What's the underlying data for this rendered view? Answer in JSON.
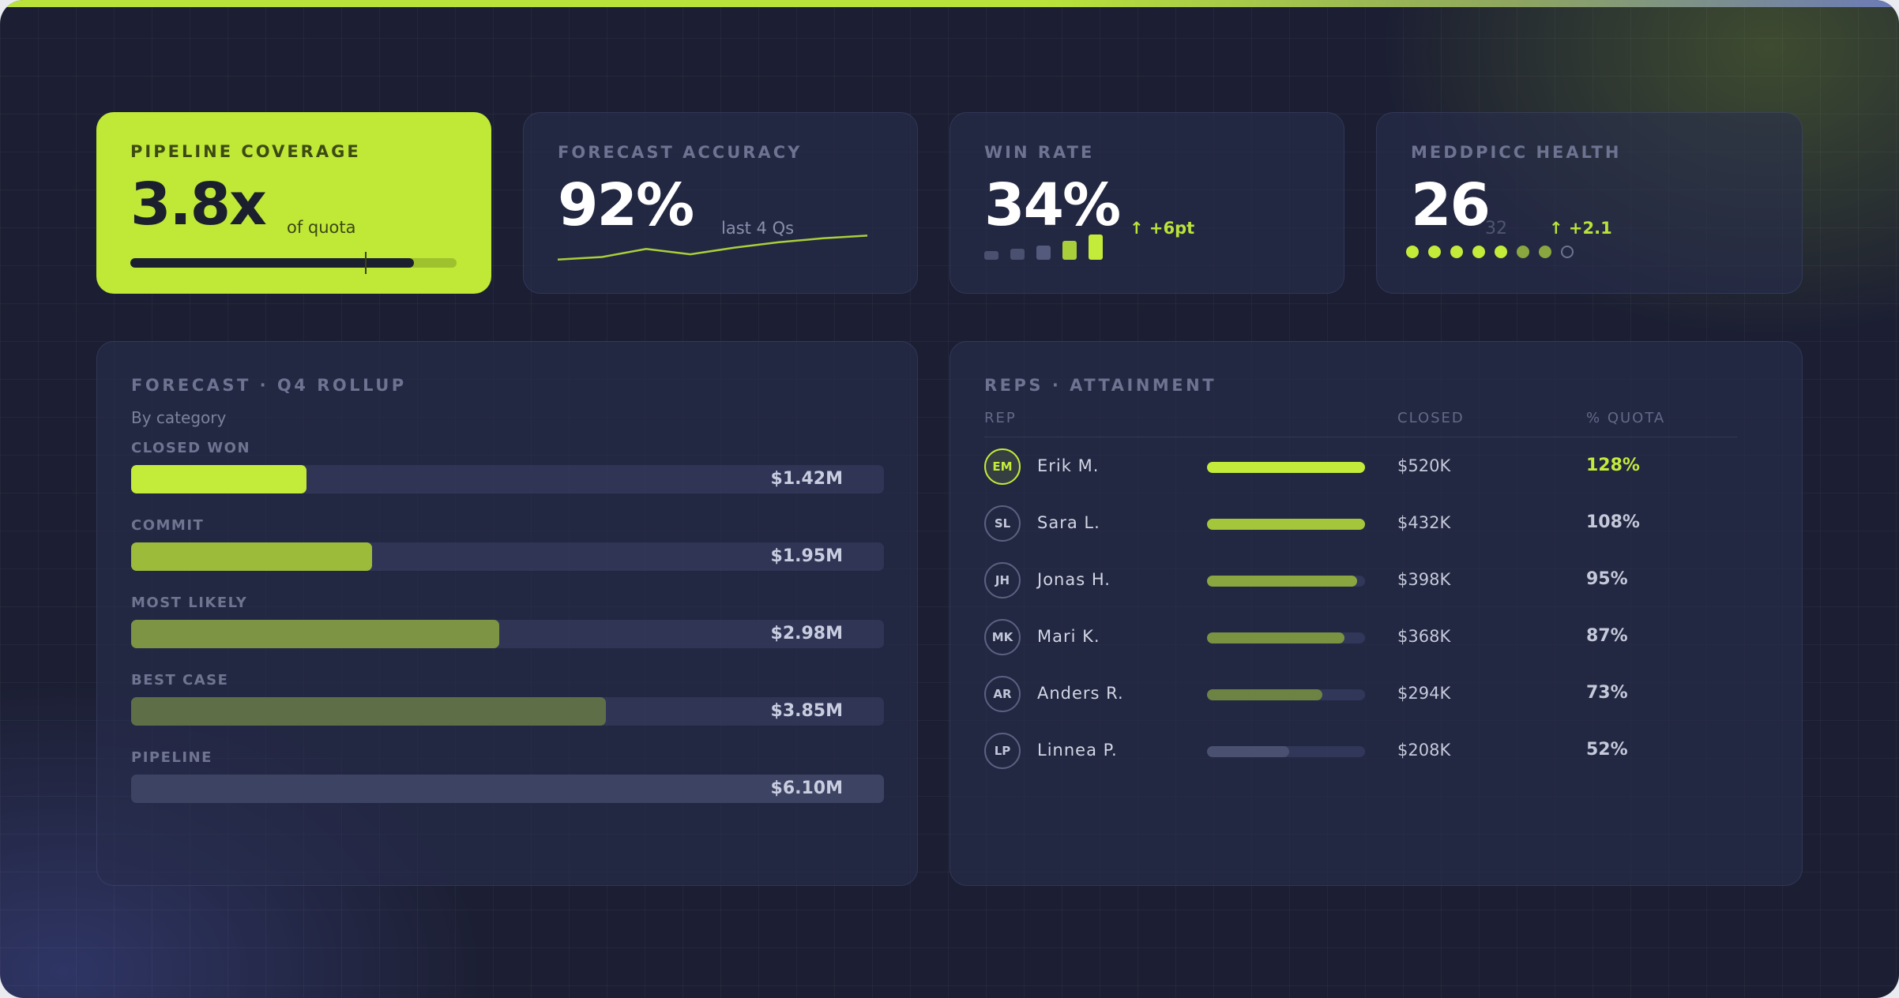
{
  "kpis": {
    "pipeline_coverage": {
      "label": "PIPELINE COVERAGE",
      "value": "3.8x",
      "sub": "of quota",
      "progress": 0.87,
      "marker": 0.72
    },
    "forecast_accuracy": {
      "label": "FORECAST ACCURACY",
      "value": "92%",
      "sub": "last 4 Qs",
      "trend": [
        0.3,
        0.4,
        0.7,
        0.5,
        0.75,
        0.95,
        1.1,
        1.2
      ]
    },
    "win_rate": {
      "label": "WIN RATE",
      "value": "34%",
      "delta": "↑ +6pt",
      "bars": [
        0.35,
        0.45,
        0.55,
        0.75,
        1.0
      ]
    },
    "meddpicc": {
      "label": "MEDDPICC HEALTH",
      "value": "26",
      "out_of": "32",
      "delta": "↑ +2.1",
      "dots": [
        "full",
        "full",
        "full",
        "full",
        "full",
        "mid",
        "mid",
        "empty"
      ]
    }
  },
  "forecast": {
    "title": "FORECAST · Q4 ROLLUP",
    "subtitle": "By category",
    "max": 6.1,
    "categories": [
      {
        "label": "CLOSED WON",
        "value": 1.42,
        "display": "$1.42M",
        "color": "#c3eb3a"
      },
      {
        "label": "COMMIT",
        "value": 1.95,
        "display": "$1.95M",
        "color": "#9dbb3a"
      },
      {
        "label": "MOST LIKELY",
        "value": 2.98,
        "display": "$2.98M",
        "color": "#7d9444"
      },
      {
        "label": "BEST CASE",
        "value": 3.85,
        "display": "$3.85M",
        "color": "#5e6f48"
      },
      {
        "label": "PIPELINE",
        "value": 6.1,
        "display": "$6.10M",
        "color": "#3d4463"
      }
    ]
  },
  "reps": {
    "title": "REPS · ATTAINMENT",
    "headers": {
      "rep": "REP",
      "closed": "CLOSED",
      "quota": "% QUOTA"
    },
    "rows": [
      {
        "initials": "EM",
        "name": "Erik M.",
        "closed": "$520K",
        "pct": "128%",
        "attainment": 1.28,
        "color": "#c3eb3a",
        "highlight": true
      },
      {
        "initials": "SL",
        "name": "Sara L.",
        "closed": "$432K",
        "pct": "108%",
        "attainment": 1.08,
        "color": "#a4c63a",
        "highlight": false
      },
      {
        "initials": "JH",
        "name": "Jonas H.",
        "closed": "$398K",
        "pct": "95%",
        "attainment": 0.95,
        "color": "#8aa640",
        "highlight": false
      },
      {
        "initials": "MK",
        "name": "Mari K.",
        "closed": "$368K",
        "pct": "87%",
        "attainment": 0.87,
        "color": "#7a9342",
        "highlight": false
      },
      {
        "initials": "AR",
        "name": "Anders R.",
        "closed": "$294K",
        "pct": "73%",
        "attainment": 0.73,
        "color": "#6c8344",
        "highlight": false
      },
      {
        "initials": "LP",
        "name": "Linnea P.",
        "closed": "$208K",
        "pct": "52%",
        "attainment": 0.52,
        "color": "#4a5070",
        "highlight": false
      }
    ]
  }
}
